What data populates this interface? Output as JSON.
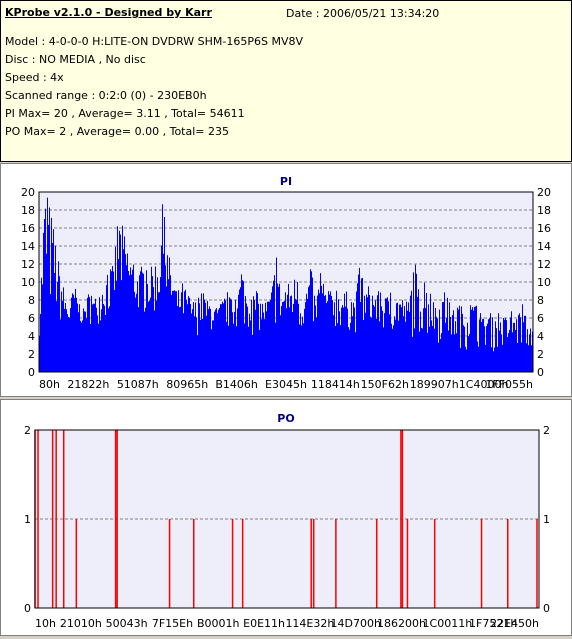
{
  "header": {
    "app_title": "KProbe v2.1.0 - Designed by Karr",
    "date": "Date : 2006/05/21 13:34:20",
    "model": "Model : 4-0-0-0 H:LITE-ON DVDRW SHM-165P6S MV8V",
    "disc": "Disc : NO MEDIA , No disc",
    "speed": "Speed : 4x",
    "range": "Scanned range : 0:2:0 (0) - 230EB0h",
    "pi_stats": "PI Max= 20 , Average= 3.11 , Total= 54611",
    "po_stats": "PO Max= 2 , Average= 0.00 , Total= 235"
  },
  "colors": {
    "plot_bg": "#eeeefa",
    "pi_bar": "#0000ff",
    "po_bar": "#ff0000",
    "grid": "#808080",
    "title": "#000080"
  },
  "chart_data": [
    {
      "type": "bar",
      "title": "PI",
      "ylim": [
        0,
        20
      ],
      "yticks": [
        0,
        2,
        4,
        6,
        8,
        10,
        12,
        14,
        16,
        18,
        20
      ],
      "xticks": [
        "80h",
        "21822h",
        "51087h",
        "80965h",
        "B1406h",
        "E3045h",
        "118414h",
        "150F62h",
        "189907h",
        "1C4000h",
        "1FF055h"
      ],
      "grid": true,
      "envelope": [
        [
          0,
          6
        ],
        [
          1,
          20
        ],
        [
          2,
          19
        ],
        [
          3,
          16
        ],
        [
          4,
          12
        ],
        [
          5,
          9
        ],
        [
          6,
          7
        ],
        [
          7,
          10
        ],
        [
          8,
          8
        ],
        [
          9,
          7
        ],
        [
          10,
          9
        ],
        [
          11,
          8
        ],
        [
          12,
          9
        ],
        [
          13,
          10
        ],
        [
          14,
          11
        ],
        [
          15,
          12
        ],
        [
          16,
          18
        ],
        [
          17,
          16
        ],
        [
          18,
          14
        ],
        [
          19,
          12
        ],
        [
          20,
          11
        ],
        [
          21,
          12
        ],
        [
          22,
          11
        ],
        [
          23,
          12
        ],
        [
          24,
          13
        ],
        [
          25,
          19
        ],
        [
          26,
          14
        ],
        [
          27,
          11
        ],
        [
          28,
          9
        ],
        [
          29,
          10
        ],
        [
          30,
          9
        ],
        [
          31,
          8
        ],
        [
          32,
          8
        ],
        [
          33,
          9
        ],
        [
          34,
          8
        ],
        [
          35,
          8
        ],
        [
          36,
          7
        ],
        [
          37,
          8
        ],
        [
          38,
          9
        ],
        [
          39,
          8
        ],
        [
          40,
          8
        ],
        [
          41,
          12
        ],
        [
          42,
          9
        ],
        [
          43,
          8
        ],
        [
          44,
          9
        ],
        [
          45,
          8
        ],
        [
          46,
          8
        ],
        [
          47,
          9
        ],
        [
          48,
          13
        ],
        [
          49,
          9
        ],
        [
          50,
          10
        ],
        [
          51,
          10
        ],
        [
          52,
          11
        ],
        [
          53,
          8
        ],
        [
          54,
          9
        ],
        [
          55,
          12
        ],
        [
          56,
          8
        ],
        [
          57,
          11
        ],
        [
          58,
          9
        ],
        [
          59,
          9
        ],
        [
          60,
          10
        ],
        [
          61,
          9
        ],
        [
          62,
          9
        ],
        [
          63,
          9
        ],
        [
          64,
          8
        ],
        [
          65,
          12
        ],
        [
          66,
          9
        ],
        [
          67,
          10
        ],
        [
          68,
          9
        ],
        [
          69,
          9
        ],
        [
          70,
          8
        ],
        [
          71,
          9
        ],
        [
          72,
          8
        ],
        [
          73,
          9
        ],
        [
          74,
          8
        ],
        [
          75,
          8
        ],
        [
          76,
          13
        ],
        [
          77,
          9
        ],
        [
          78,
          10
        ],
        [
          79,
          9
        ],
        [
          80,
          8
        ],
        [
          81,
          8
        ],
        [
          82,
          9
        ],
        [
          83,
          8
        ],
        [
          84,
          7
        ],
        [
          85,
          8
        ],
        [
          86,
          7
        ],
        [
          87,
          7
        ],
        [
          88,
          8
        ],
        [
          89,
          7
        ],
        [
          90,
          6
        ],
        [
          91,
          7
        ],
        [
          92,
          6
        ],
        [
          93,
          7
        ],
        [
          94,
          6
        ],
        [
          95,
          6
        ],
        [
          96,
          7
        ],
        [
          97,
          6
        ],
        [
          98,
          8
        ],
        [
          99,
          5
        ],
        [
          100,
          6
        ]
      ],
      "baseline": [
        [
          0,
          4
        ],
        [
          10,
          5
        ],
        [
          20,
          6
        ],
        [
          30,
          4
        ],
        [
          40,
          4
        ],
        [
          50,
          4
        ],
        [
          60,
          4
        ],
        [
          70,
          4
        ],
        [
          80,
          3
        ],
        [
          90,
          2
        ],
        [
          100,
          2
        ]
      ]
    },
    {
      "type": "bar",
      "title": "PO",
      "ylim": [
        0,
        2
      ],
      "yticks": [
        0,
        1,
        2
      ],
      "xticks": [
        "10h",
        "21010h",
        "50043h",
        "7F15Eh",
        "B0001h",
        "E0E11h",
        "114E32h",
        "14D700h",
        "186200h",
        "1C0011h",
        "1F7521h",
        "22E450h"
      ],
      "grid": true,
      "spikes": [
        [
          0.0,
          2
        ],
        [
          0.6,
          2
        ],
        [
          3.5,
          2
        ],
        [
          4.2,
          2
        ],
        [
          5.7,
          2
        ],
        [
          8.2,
          1
        ],
        [
          16.0,
          2
        ],
        [
          16.3,
          2
        ],
        [
          26.7,
          1
        ],
        [
          31.5,
          1
        ],
        [
          39.2,
          1
        ],
        [
          41.2,
          1
        ],
        [
          54.8,
          1
        ],
        [
          55.3,
          1
        ],
        [
          59.7,
          1
        ],
        [
          67.8,
          1
        ],
        [
          72.6,
          2
        ],
        [
          72.9,
          2
        ],
        [
          73.9,
          1
        ],
        [
          79.3,
          1
        ],
        [
          88.6,
          1
        ],
        [
          93.8,
          1
        ],
        [
          99.6,
          1
        ]
      ]
    }
  ]
}
